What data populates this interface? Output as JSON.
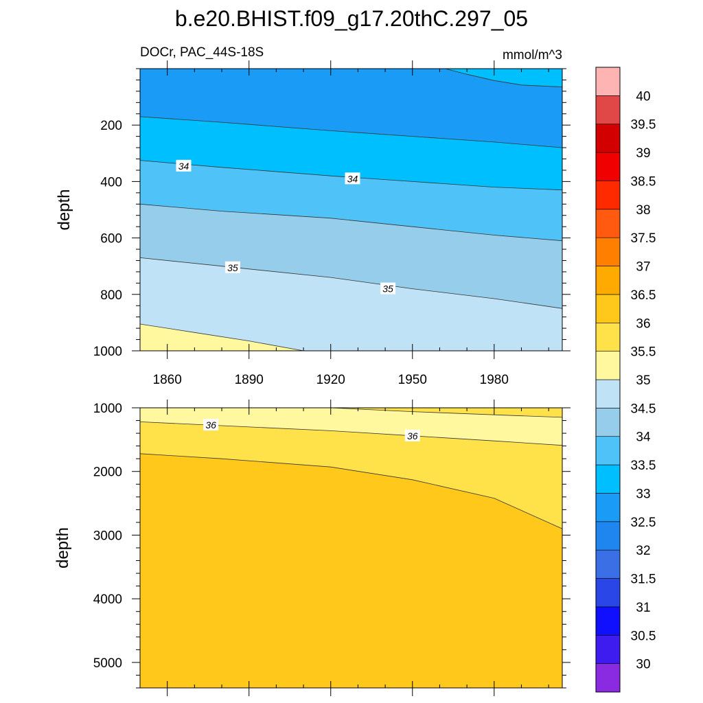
{
  "title": "b.e20.BHIST.f09_g17.20thC.297_05",
  "subtitle_left": "DOCr, PAC_44S-18S",
  "subtitle_right": "mmol/m^3",
  "colorbar": {
    "levels": [
      "30",
      "30.5",
      "31",
      "31.5",
      "32",
      "32.5",
      "33",
      "33.5",
      "34",
      "34.5",
      "35",
      "35.5",
      "36",
      "36.5",
      "37",
      "37.5",
      "38",
      "38.5",
      "39",
      "39.5",
      "40"
    ],
    "colors": [
      "#8a2be2",
      "#3e1cf0",
      "#1010ff",
      "#2a46e6",
      "#3a6fe6",
      "#1f86ef",
      "#199bf6",
      "#00bfff",
      "#4fc3f7",
      "#96cdeb",
      "#bfe2f6",
      "#fff89f",
      "#ffe24a",
      "#ffc81a",
      "#ffaa00",
      "#ff8000",
      "#ff5a10",
      "#ff2a00",
      "#f00000",
      "#d20000",
      "#e04848",
      "#ffb4b4"
    ]
  },
  "chart_data": [
    {
      "type": "contour",
      "panel": "upper",
      "x_range": [
        1850,
        2005
      ],
      "x_ticks": [
        1860,
        1890,
        1920,
        1950,
        1980
      ],
      "ylabel": "depth",
      "y_range": [
        0,
        1000
      ],
      "y_reversed": true,
      "y_ticks": [
        200,
        400,
        600,
        800,
        1000
      ],
      "contours": [
        {
          "level": 33,
          "points": [
            [
              1962,
              0
            ],
            [
              1970,
              20
            ],
            [
              1980,
              42
            ],
            [
              1990,
              58
            ],
            [
              2005,
              65
            ]
          ]
        },
        {
          "level": 33.5,
          "points": [
            [
              1850,
              170
            ],
            [
              1880,
              190
            ],
            [
              1920,
              220
            ],
            [
              1950,
              240
            ],
            [
              1980,
              260
            ],
            [
              2005,
              280
            ]
          ]
        },
        {
          "level": 34,
          "points": [
            [
              1850,
              325
            ],
            [
              1880,
              350
            ],
            [
              1920,
              380
            ],
            [
              1950,
              400
            ],
            [
              1980,
              420
            ],
            [
              2005,
              430
            ]
          ]
        },
        {
          "level": 34.5,
          "points": [
            [
              1850,
              480
            ],
            [
              1880,
              505
            ],
            [
              1920,
              530
            ],
            [
              1950,
              560
            ],
            [
              1980,
              590
            ],
            [
              2005,
              610
            ]
          ]
        },
        {
          "level": 35,
          "points": [
            [
              1850,
              670
            ],
            [
              1880,
              700
            ],
            [
              1920,
              740
            ],
            [
              1950,
              780
            ],
            [
              1980,
              815
            ],
            [
              2005,
              850
            ]
          ]
        },
        {
          "level": 35.5,
          "points": [
            [
              1850,
              905
            ],
            [
              1870,
              935
            ],
            [
              1890,
              965
            ],
            [
              1910,
              1000
            ]
          ]
        }
      ],
      "contour_labels": [
        {
          "text": "34",
          "x": 1866,
          "y": 345
        },
        {
          "text": "34",
          "x": 1928,
          "y": 390
        },
        {
          "text": "35",
          "x": 1884,
          "y": 705
        },
        {
          "text": "35",
          "x": 1941,
          "y": 780
        }
      ]
    },
    {
      "type": "contour",
      "panel": "lower",
      "x_range": [
        1850,
        2005
      ],
      "x_ticks": [
        1860,
        1890,
        1920,
        1950,
        1980
      ],
      "ylabel": "depth",
      "y_range": [
        1000,
        5400
      ],
      "y_reversed": true,
      "y_ticks": [
        1000,
        2000,
        3000,
        4000,
        5000
      ],
      "contours": [
        {
          "level": 35.5,
          "points": [
            [
              1920,
              1000
            ],
            [
              1950,
              1060
            ],
            [
              1980,
              1110
            ],
            [
              2005,
              1150
            ]
          ]
        },
        {
          "level": 36,
          "points": [
            [
              1850,
              1220
            ],
            [
              1880,
              1280
            ],
            [
              1920,
              1360
            ],
            [
              1950,
              1440
            ],
            [
              1980,
              1520
            ],
            [
              2005,
              1590
            ]
          ]
        },
        {
          "level": 36.5,
          "points": [
            [
              1850,
              1720
            ],
            [
              1880,
              1800
            ],
            [
              1920,
              1930
            ],
            [
              1950,
              2130
            ],
            [
              1980,
              2420
            ],
            [
              2005,
              2900
            ]
          ]
        }
      ],
      "contour_labels": [
        {
          "text": "36",
          "x": 1876,
          "y": 1270
        },
        {
          "text": "36",
          "x": 1950,
          "y": 1440
        }
      ]
    }
  ]
}
